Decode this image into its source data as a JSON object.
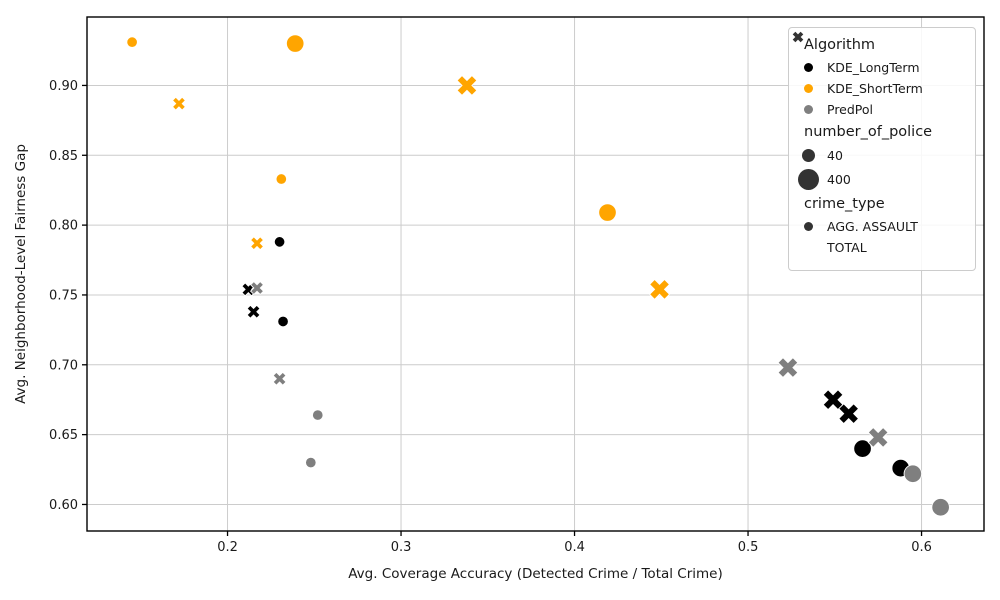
{
  "chart_data": {
    "type": "scatter",
    "title": "",
    "xlabel": "Avg. Coverage Accuracy (Detected Crime / Total Crime)",
    "ylabel": "Avg. Neighborhood-Level Fairness Gap",
    "xlim": [
      0.119,
      0.636
    ],
    "ylim": [
      0.581,
      0.949
    ],
    "xticks": [
      0.2,
      0.3,
      0.4,
      0.5,
      0.6
    ],
    "xtick_labels": [
      "0.2",
      "0.3",
      "0.4",
      "0.5",
      "0.6"
    ],
    "yticks": [
      0.6,
      0.65,
      0.7,
      0.75,
      0.8,
      0.85,
      0.9
    ],
    "ytick_labels": [
      "0.60",
      "0.65",
      "0.70",
      "0.75",
      "0.80",
      "0.85",
      "0.90"
    ],
    "grid": true,
    "grid_color": "#cccccc",
    "spine_color": "#000000",
    "marker_by_crime_type": {
      "AGG. ASSAULT": "circle",
      "TOTAL": "X"
    },
    "size_by_police": {
      "40": "small",
      "400": "large"
    },
    "colors": {
      "KDE_LongTerm": "#000000",
      "KDE_ShortTerm": "#FFA500",
      "PredPol": "#7f7f7f"
    },
    "series": [
      {
        "name": "KDE_LongTerm",
        "color": "#000000",
        "points": [
          {
            "x": 0.23,
            "y": 0.788,
            "number_of_police": 40,
            "crime_type": "AGG. ASSAULT"
          },
          {
            "x": 0.232,
            "y": 0.731,
            "number_of_police": 40,
            "crime_type": "AGG. ASSAULT"
          },
          {
            "x": 0.212,
            "y": 0.754,
            "number_of_police": 40,
            "crime_type": "TOTAL"
          },
          {
            "x": 0.215,
            "y": 0.738,
            "number_of_police": 40,
            "crime_type": "TOTAL"
          },
          {
            "x": 0.566,
            "y": 0.64,
            "number_of_police": 400,
            "crime_type": "AGG. ASSAULT"
          },
          {
            "x": 0.588,
            "y": 0.626,
            "number_of_police": 400,
            "crime_type": "AGG. ASSAULT"
          },
          {
            "x": 0.549,
            "y": 0.675,
            "number_of_police": 400,
            "crime_type": "TOTAL"
          },
          {
            "x": 0.558,
            "y": 0.665,
            "number_of_police": 400,
            "crime_type": "TOTAL"
          }
        ]
      },
      {
        "name": "KDE_ShortTerm",
        "color": "#FFA500",
        "points": [
          {
            "x": 0.145,
            "y": 0.931,
            "number_of_police": 40,
            "crime_type": "AGG. ASSAULT"
          },
          {
            "x": 0.231,
            "y": 0.833,
            "number_of_police": 40,
            "crime_type": "AGG. ASSAULT"
          },
          {
            "x": 0.172,
            "y": 0.887,
            "number_of_police": 40,
            "crime_type": "TOTAL"
          },
          {
            "x": 0.217,
            "y": 0.787,
            "number_of_police": 40,
            "crime_type": "TOTAL"
          },
          {
            "x": 0.239,
            "y": 0.93,
            "number_of_police": 400,
            "crime_type": "AGG. ASSAULT"
          },
          {
            "x": 0.419,
            "y": 0.809,
            "number_of_police": 400,
            "crime_type": "AGG. ASSAULT"
          },
          {
            "x": 0.338,
            "y": 0.9,
            "number_of_police": 400,
            "crime_type": "TOTAL"
          },
          {
            "x": 0.449,
            "y": 0.754,
            "number_of_police": 400,
            "crime_type": "TOTAL"
          }
        ]
      },
      {
        "name": "PredPol",
        "color": "#7f7f7f",
        "points": [
          {
            "x": 0.252,
            "y": 0.664,
            "number_of_police": 40,
            "crime_type": "AGG. ASSAULT"
          },
          {
            "x": 0.248,
            "y": 0.63,
            "number_of_police": 40,
            "crime_type": "AGG. ASSAULT"
          },
          {
            "x": 0.217,
            "y": 0.755,
            "number_of_police": 40,
            "crime_type": "TOTAL"
          },
          {
            "x": 0.23,
            "y": 0.69,
            "number_of_police": 40,
            "crime_type": "TOTAL"
          },
          {
            "x": 0.595,
            "y": 0.622,
            "number_of_police": 400,
            "crime_type": "AGG. ASSAULT"
          },
          {
            "x": 0.611,
            "y": 0.598,
            "number_of_police": 400,
            "crime_type": "AGG. ASSAULT"
          },
          {
            "x": 0.523,
            "y": 0.698,
            "number_of_police": 400,
            "crime_type": "TOTAL"
          },
          {
            "x": 0.575,
            "y": 0.648,
            "number_of_police": 400,
            "crime_type": "TOTAL"
          }
        ]
      }
    ],
    "legend": {
      "position": "upper right",
      "text_color": "#1a1a1a",
      "swatch_neutral_color": "#333333",
      "sections": [
        {
          "title": "Algorithm",
          "entries": [
            {
              "label": "KDE_LongTerm",
              "marker": "circle",
              "color": "#000000",
              "size": "sm"
            },
            {
              "label": "KDE_ShortTerm",
              "marker": "circle",
              "color": "#FFA500",
              "size": "sm"
            },
            {
              "label": "PredPol",
              "marker": "circle",
              "color": "#7f7f7f",
              "size": "sm"
            }
          ]
        },
        {
          "title": "number_of_police",
          "entries": [
            {
              "label": "40",
              "marker": "circle",
              "color": "#333333",
              "size": "md"
            },
            {
              "label": "400",
              "marker": "circle",
              "color": "#333333",
              "size": "lg"
            }
          ]
        },
        {
          "title": "crime_type",
          "entries": [
            {
              "label": "AGG. ASSAULT",
              "marker": "circle",
              "color": "#333333",
              "size": "sm"
            },
            {
              "label": "TOTAL",
              "marker": "X",
              "color": "#333333",
              "size": "sm"
            }
          ]
        }
      ]
    }
  }
}
